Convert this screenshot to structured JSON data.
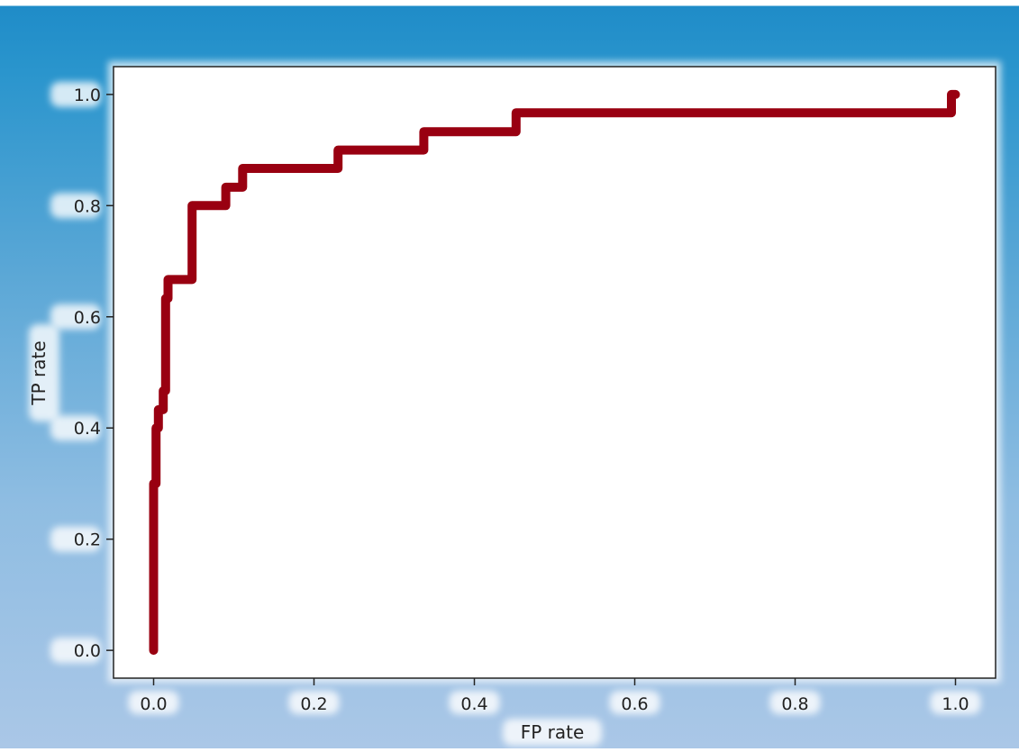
{
  "chart_data": {
    "type": "line",
    "title": "",
    "xlabel": "FP rate",
    "ylabel": "TP rate",
    "xlim": [
      -0.05,
      1.05
    ],
    "ylim": [
      -0.05,
      1.05
    ],
    "grid": false,
    "x_ticks": [
      "0.0",
      "0.2",
      "0.4",
      "0.6",
      "0.8",
      "1.0"
    ],
    "y_ticks": [
      "0.0",
      "0.2",
      "0.4",
      "0.6",
      "0.8",
      "1.0"
    ],
    "series": [
      {
        "name": "",
        "color": "#990011",
        "x": [
          0.0,
          0.0,
          0.003,
          0.003,
          0.006,
          0.006,
          0.012,
          0.012,
          0.015,
          0.015,
          0.018,
          0.018,
          0.024,
          0.024,
          0.048,
          0.048,
          0.09,
          0.09,
          0.111,
          0.111,
          0.23,
          0.23,
          0.337,
          0.337,
          0.452,
          0.452,
          0.78,
          0.995,
          0.995,
          1.0
        ],
        "y": [
          0.0,
          0.3,
          0.3,
          0.4,
          0.4,
          0.433,
          0.433,
          0.467,
          0.467,
          0.633,
          0.633,
          0.667,
          0.667,
          0.667,
          0.667,
          0.8,
          0.8,
          0.833,
          0.833,
          0.867,
          0.867,
          0.9,
          0.9,
          0.933,
          0.933,
          0.967,
          0.967,
          0.967,
          1.0,
          1.0
        ]
      }
    ]
  }
}
